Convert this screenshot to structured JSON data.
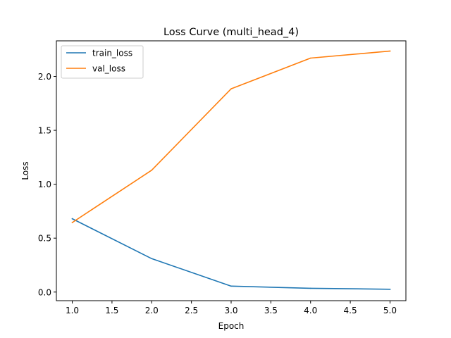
{
  "chart_data": {
    "type": "line",
    "title": "Loss Curve (multi_head_4)",
    "xlabel": "Epoch",
    "ylabel": "Loss",
    "x": [
      1,
      2,
      3,
      4,
      5
    ],
    "xlim": [
      0.8,
      5.2
    ],
    "ylim": [
      -0.08,
      2.33
    ],
    "xticks": [
      1.0,
      1.5,
      2.0,
      2.5,
      3.0,
      3.5,
      4.0,
      4.5,
      5.0
    ],
    "xtick_labels": [
      "1.0",
      "1.5",
      "2.0",
      "2.5",
      "3.0",
      "3.5",
      "4.0",
      "4.5",
      "5.0"
    ],
    "yticks": [
      0.0,
      0.5,
      1.0,
      1.5,
      2.0
    ],
    "ytick_labels": [
      "0.0",
      "0.5",
      "1.0",
      "1.5",
      "2.0"
    ],
    "grid": false,
    "legend_position": "top-left",
    "series": [
      {
        "name": "train_loss",
        "color": "#1f77b4",
        "values": [
          0.68,
          0.31,
          0.055,
          0.035,
          0.026
        ]
      },
      {
        "name": "val_loss",
        "color": "#ff7f0e",
        "values": [
          0.645,
          1.13,
          1.885,
          2.17,
          2.235
        ]
      }
    ]
  }
}
